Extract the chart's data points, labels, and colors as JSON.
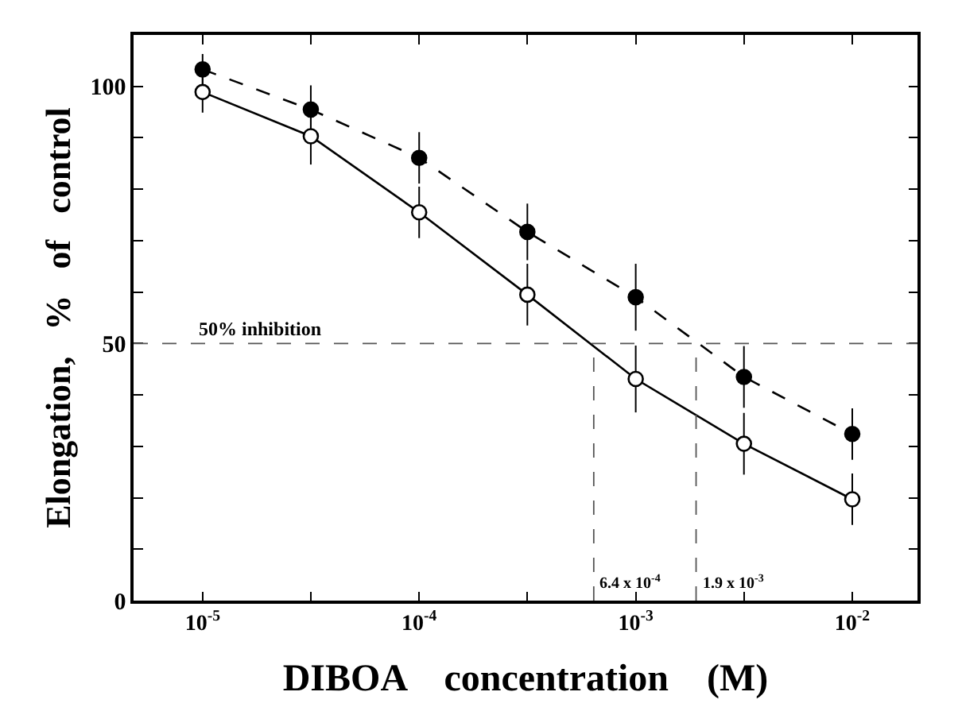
{
  "chart_data": {
    "type": "line",
    "xlabel": "DIBOA    concentration    (M)",
    "ylabel": "Elongation,   %   of   control",
    "log": "x",
    "x": [
      1e-05,
      3.16e-05,
      0.0001,
      0.000316,
      0.001,
      0.00316,
      0.01
    ],
    "series": [
      {
        "color": "#000000",
        "marker": "circle",
        "line_style": "dashed",
        "values": [
          103.3,
          95.5,
          86.1,
          71.7,
          59,
          43.5,
          32.4
        ],
        "errors": [
          3,
          4.7,
          5,
          5.5,
          6.5,
          6,
          5
        ]
      },
      {
        "color": "#000000",
        "marker": "circle-open",
        "line_style": "solid",
        "values": [
          98.9,
          90.3,
          75.5,
          59.5,
          43.1,
          30.5,
          19.7
        ],
        "errors": [
          4,
          5.5,
          5,
          6,
          6.5,
          6,
          5
        ]
      }
    ],
    "xlim": [
      4.8e-06,
      0.02
    ],
    "xticks": [
      {
        "value": 1e-05,
        "label": "10$^{-5}$"
      },
      {
        "value": 3.16e-05,
        "label": null
      },
      {
        "value": 0.0001,
        "label": "10$^{-4}$"
      },
      {
        "value": 0.000316,
        "label": null
      },
      {
        "value": 0.001,
        "label": "10$^{-3}$"
      },
      {
        "value": 0.00316,
        "label": null
      },
      {
        "value": 0.01,
        "label": "10$^{-2}$"
      }
    ],
    "ylim": [
      0,
      110
    ],
    "yticks": [
      0,
      {
        "value": 10,
        "label": null
      },
      {
        "value": 20,
        "label": null
      },
      {
        "value": 30,
        "label": null
      },
      {
        "value": 40,
        "label": null
      },
      50,
      {
        "value": 60,
        "label": null
      },
      {
        "value": 70,
        "label": null
      },
      {
        "value": 80,
        "label": null
      },
      {
        "value": 90,
        "label": null
      },
      100
    ],
    "ref_lines": [
      {
        "axis": "y",
        "value": 50,
        "label": "50% inhibition",
        "line_style": "dashed"
      },
      {
        "axis": "x",
        "value": 0.00064,
        "label": "6.4 x 10$^{-4}$",
        "line_style": "dashed"
      },
      {
        "axis": "x",
        "value": 0.0019,
        "label": "1.9 x 10$^{-3}$",
        "line_style": "dashed"
      }
    ]
  }
}
